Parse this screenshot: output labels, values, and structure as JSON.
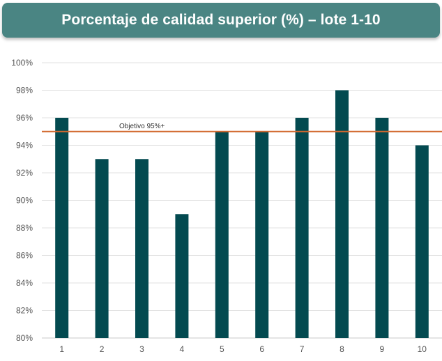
{
  "chart_data": {
    "type": "bar",
    "title": "Porcentaje de calidad superior (%) – lote 1-10",
    "xlabel": "",
    "ylabel": "",
    "categories": [
      "1",
      "2",
      "3",
      "4",
      "5",
      "6",
      "7",
      "8",
      "9",
      "10"
    ],
    "values": [
      96,
      93,
      93,
      89,
      95,
      95,
      96,
      98,
      96,
      94
    ],
    "ylim": [
      80,
      100
    ],
    "yticks": [
      80,
      82,
      84,
      86,
      88,
      90,
      92,
      94,
      96,
      98,
      100
    ],
    "ytick_suffix": "%",
    "grid": true,
    "legend": "none",
    "reference_line": {
      "value": 95,
      "label": "Objetivo 95%+",
      "color": "#d2692e"
    },
    "bar_color": "#034a50",
    "title_bg_color": "#4a8583"
  }
}
